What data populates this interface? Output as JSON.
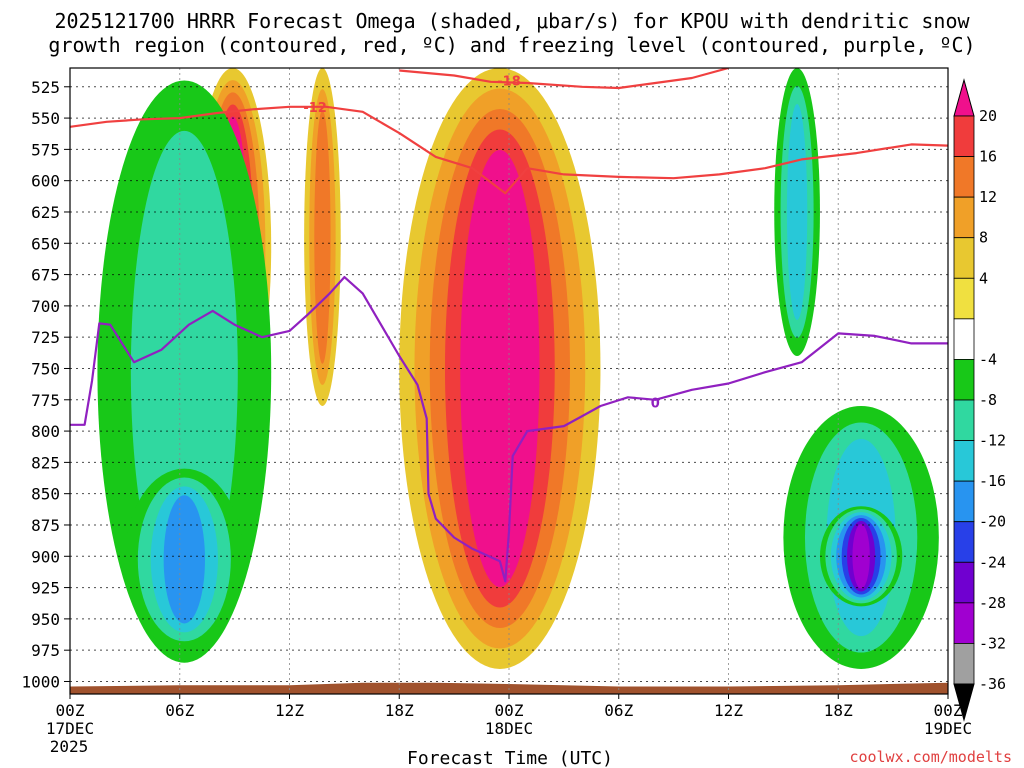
{
  "chart_data": {
    "type": "heatmap",
    "title_lines": [
      "2025121700 HRRR Forecast Omega (shaded, μbar/s) for KPOU with dendritic snow",
      "growth region (contoured, red, ºC) and freezing level (contoured, purple, ºC)"
    ],
    "xlabel": "Forecast Time (UTC)",
    "ylabel": "",
    "credit": "coolwx.com/modelts",
    "x_range_hours": [
      0,
      48
    ],
    "y_range_mb": [
      1010,
      510
    ],
    "y_ticks": [
      525,
      550,
      575,
      600,
      625,
      650,
      675,
      700,
      725,
      750,
      775,
      800,
      825,
      850,
      875,
      900,
      925,
      950,
      975,
      1000
    ],
    "x_ticks": [
      {
        "h": 0,
        "top": "00Z",
        "mid": "17DEC",
        "bot": "2025"
      },
      {
        "h": 6,
        "top": "06Z",
        "mid": "",
        "bot": ""
      },
      {
        "h": 12,
        "top": "12Z",
        "mid": "",
        "bot": ""
      },
      {
        "h": 18,
        "top": "18Z",
        "mid": "",
        "bot": ""
      },
      {
        "h": 24,
        "top": "00Z",
        "mid": "18DEC",
        "bot": ""
      },
      {
        "h": 30,
        "top": "06Z",
        "mid": "",
        "bot": ""
      },
      {
        "h": 36,
        "top": "12Z",
        "mid": "",
        "bot": ""
      },
      {
        "h": 42,
        "top": "18Z",
        "mid": "",
        "bot": ""
      },
      {
        "h": 48,
        "top": "00Z",
        "mid": "19DEC",
        "bot": ""
      }
    ],
    "colorbar": {
      "labels": [
        "20",
        "16",
        "12",
        "8",
        "4",
        "-4",
        "-8",
        "-12",
        "-16",
        "-20",
        "-24",
        "-28",
        "-32",
        "-36"
      ],
      "bands": [
        "#f0108c",
        "#f03c3c",
        "#f07828",
        "#f0a028",
        "#e8c830",
        "#f0e040",
        "#ffffff",
        "#18c818",
        "#30d8a0",
        "#28c8d8",
        "#2894f0",
        "#2840e8",
        "#7000d0",
        "#a000d0",
        "#a0a0a0",
        "#000000"
      ]
    },
    "colors": {
      "ground": "#a0522d",
      "dgz_contour": "#f04040",
      "freezing_contour": "#9020c0",
      "grid": "#888888"
    },
    "omega_regions": [
      {
        "name": "upper-mb-0609",
        "h0": 6.8,
        "h1": 11,
        "p0": 510,
        "p1": 795,
        "v": 24
      },
      {
        "name": "upper-mb-1300",
        "h0": 12.8,
        "h1": 14.8,
        "p0": 510,
        "p1": 780,
        "v": 12
      },
      {
        "name": "main-ascent-1800",
        "h0": 18,
        "h1": 29,
        "p0": 510,
        "p1": 990,
        "v": 24
      },
      {
        "name": "sink-0100",
        "h0": 1.5,
        "h1": 11,
        "p0": 520,
        "p1": 985,
        "v": -8
      },
      {
        "name": "sink-0600",
        "h0": 3,
        "h1": 9.5,
        "p0": 830,
        "p1": 975,
        "v": -16
      },
      {
        "name": "sink-4000",
        "h0": 39,
        "h1": 47.5,
        "p0": 780,
        "p1": 990,
        "v": -12
      },
      {
        "name": "sink-4200",
        "h0": 41,
        "h1": 45.5,
        "p0": 860,
        "p1": 940,
        "v": -28
      },
      {
        "name": "sink-3800",
        "h0": 38.5,
        "h1": 41,
        "p0": 510,
        "p1": 740,
        "v": -12
      }
    ],
    "contours": [
      {
        "name": "dgz-minus-12-left",
        "label": "-12",
        "label_at": [
          13.4,
          541
        ],
        "color_key": "dgz_contour",
        "points": [
          [
            0,
            557
          ],
          [
            2,
            553
          ],
          [
            4,
            551
          ],
          [
            6,
            550
          ],
          [
            8,
            546
          ],
          [
            10,
            543
          ],
          [
            12,
            541
          ],
          [
            14,
            541
          ],
          [
            16,
            545
          ],
          [
            18,
            562
          ],
          [
            20,
            581
          ],
          [
            22,
            590
          ],
          [
            23.8,
            610
          ],
          [
            25,
            590
          ],
          [
            27,
            595
          ],
          [
            30,
            597
          ],
          [
            33,
            598
          ],
          [
            35.5,
            595
          ],
          [
            38,
            590
          ],
          [
            40,
            583
          ],
          [
            43,
            578
          ],
          [
            46,
            571
          ],
          [
            48,
            572
          ]
        ]
      },
      {
        "name": "dgz-minus-18",
        "label": "-18",
        "label_at": [
          24,
          520
        ],
        "color_key": "dgz_contour",
        "points": [
          [
            18,
            512
          ],
          [
            21,
            516
          ],
          [
            23,
            521
          ],
          [
            25,
            522
          ],
          [
            28,
            525
          ],
          [
            30,
            526
          ],
          [
            32,
            522
          ],
          [
            34,
            518
          ],
          [
            36,
            510
          ]
        ]
      },
      {
        "name": "freezing-level-0",
        "label": "0",
        "label_at": [
          32,
          777
        ],
        "color_key": "freezing_contour",
        "points": [
          [
            0,
            795
          ],
          [
            0.8,
            795
          ],
          [
            1.2,
            760
          ],
          [
            1.6,
            714
          ],
          [
            2.2,
            715
          ],
          [
            3.5,
            745
          ],
          [
            5,
            735
          ],
          [
            6.5,
            715
          ],
          [
            7.8,
            704
          ],
          [
            9,
            715
          ],
          [
            10.5,
            725
          ],
          [
            12,
            720
          ],
          [
            13,
            707
          ],
          [
            14.2,
            690
          ],
          [
            15,
            677
          ],
          [
            16,
            690
          ],
          [
            17,
            715
          ],
          [
            18,
            740
          ],
          [
            19,
            763
          ],
          [
            19.5,
            790
          ],
          [
            19.6,
            850
          ],
          [
            20,
            870
          ],
          [
            21,
            885
          ],
          [
            22,
            894
          ],
          [
            23.5,
            904
          ],
          [
            23.8,
            920
          ],
          [
            24,
            880
          ],
          [
            24.2,
            820
          ],
          [
            25,
            800
          ],
          [
            26,
            798
          ],
          [
            27,
            796
          ],
          [
            28,
            788
          ],
          [
            29,
            780
          ],
          [
            30.5,
            773
          ],
          [
            32,
            775
          ],
          [
            34,
            767
          ],
          [
            36,
            762
          ],
          [
            38,
            753
          ],
          [
            40,
            745
          ],
          [
            42,
            722
          ],
          [
            44,
            724
          ],
          [
            46,
            730
          ],
          [
            48,
            730
          ]
        ]
      }
    ]
  }
}
